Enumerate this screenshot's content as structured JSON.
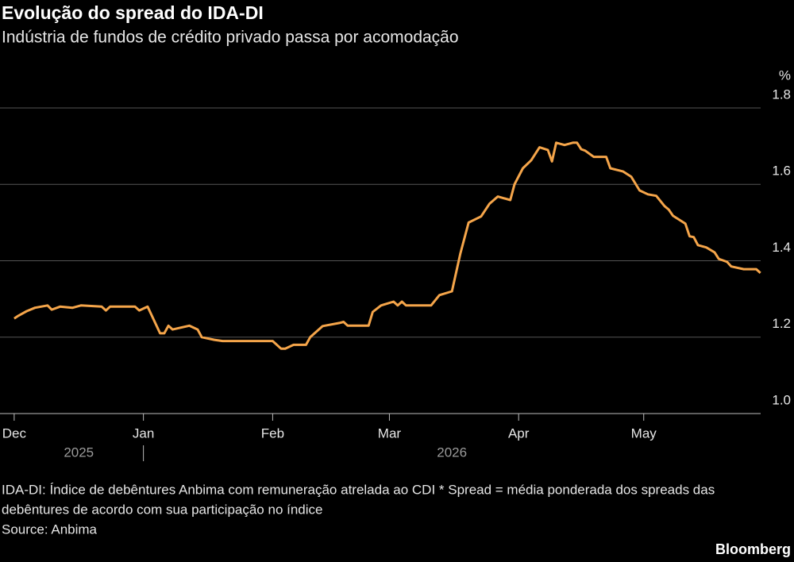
{
  "chart_data": {
    "type": "line",
    "title": "Evolução do spread do IDA-DI",
    "subtitle": "Indústria de fundos de crédito privado passa por acomodação",
    "y_label": "%",
    "note": "IDA-DI: Índice de debêntures Anbima com remuneração atrelada ao CDI * Spread = média ponderada dos spreads das debêntures de acordo com sua participação no índice",
    "source": "Source: Anbima",
    "brand": "Bloomberg",
    "year_labels": [
      "2025",
      "2026"
    ],
    "x": [
      0,
      1,
      3,
      5,
      8,
      9,
      11,
      14,
      16,
      21,
      22,
      23,
      29,
      30,
      32,
      35,
      36,
      37,
      38,
      42,
      44,
      45,
      48,
      50,
      62,
      64,
      65,
      67,
      70,
      71,
      74,
      78,
      79,
      80,
      85,
      86,
      88,
      91,
      92,
      93,
      94,
      100,
      102,
      105,
      107,
      109,
      112,
      114,
      116,
      119,
      120,
      122,
      124,
      126,
      128,
      129,
      130,
      132,
      134,
      135,
      136,
      137,
      139,
      142,
      143,
      146,
      148,
      150,
      152,
      154,
      156,
      157,
      158,
      161,
      162,
      163,
      164,
      166,
      168,
      169,
      171,
      172,
      175,
      178,
      179
    ],
    "series": [
      {
        "name": "IDA-DI spread",
        "color": "#f5a54a",
        "values": [
          1.249,
          1.256,
          1.268,
          1.277,
          1.283,
          1.272,
          1.28,
          1.277,
          1.283,
          1.28,
          1.27,
          1.28,
          1.28,
          1.27,
          1.28,
          1.21,
          1.21,
          1.23,
          1.22,
          1.23,
          1.22,
          1.2,
          1.193,
          1.19,
          1.19,
          1.17,
          1.17,
          1.18,
          1.18,
          1.2,
          1.229,
          1.237,
          1.24,
          1.23,
          1.23,
          1.266,
          1.283,
          1.293,
          1.283,
          1.293,
          1.283,
          1.283,
          1.31,
          1.32,
          1.418,
          1.5,
          1.516,
          1.549,
          1.568,
          1.559,
          1.6,
          1.642,
          1.663,
          1.697,
          1.69,
          1.66,
          1.709,
          1.703,
          1.709,
          1.709,
          1.692,
          1.688,
          1.672,
          1.672,
          1.642,
          1.634,
          1.62,
          1.584,
          1.574,
          1.57,
          1.543,
          1.534,
          1.518,
          1.497,
          1.464,
          1.462,
          1.441,
          1.435,
          1.422,
          1.405,
          1.397,
          1.385,
          1.378,
          1.378,
          1.368
        ]
      }
    ],
    "xlim": [
      -3.4,
      180
    ],
    "xticks": [
      {
        "value": 0,
        "label": "Dec"
      },
      {
        "value": 31,
        "label": "Jan"
      },
      {
        "value": 62,
        "label": "Feb"
      },
      {
        "value": 90,
        "label": "Mar"
      },
      {
        "value": 121,
        "label": "Apr"
      },
      {
        "value": 151,
        "label": "May"
      }
    ],
    "ylim": [
      1.0,
      1.8
    ],
    "yticks": [
      {
        "value": 1.0,
        "label": "1.0"
      },
      1.2,
      1.4,
      1.6,
      1.8
    ],
    "grid": true
  }
}
